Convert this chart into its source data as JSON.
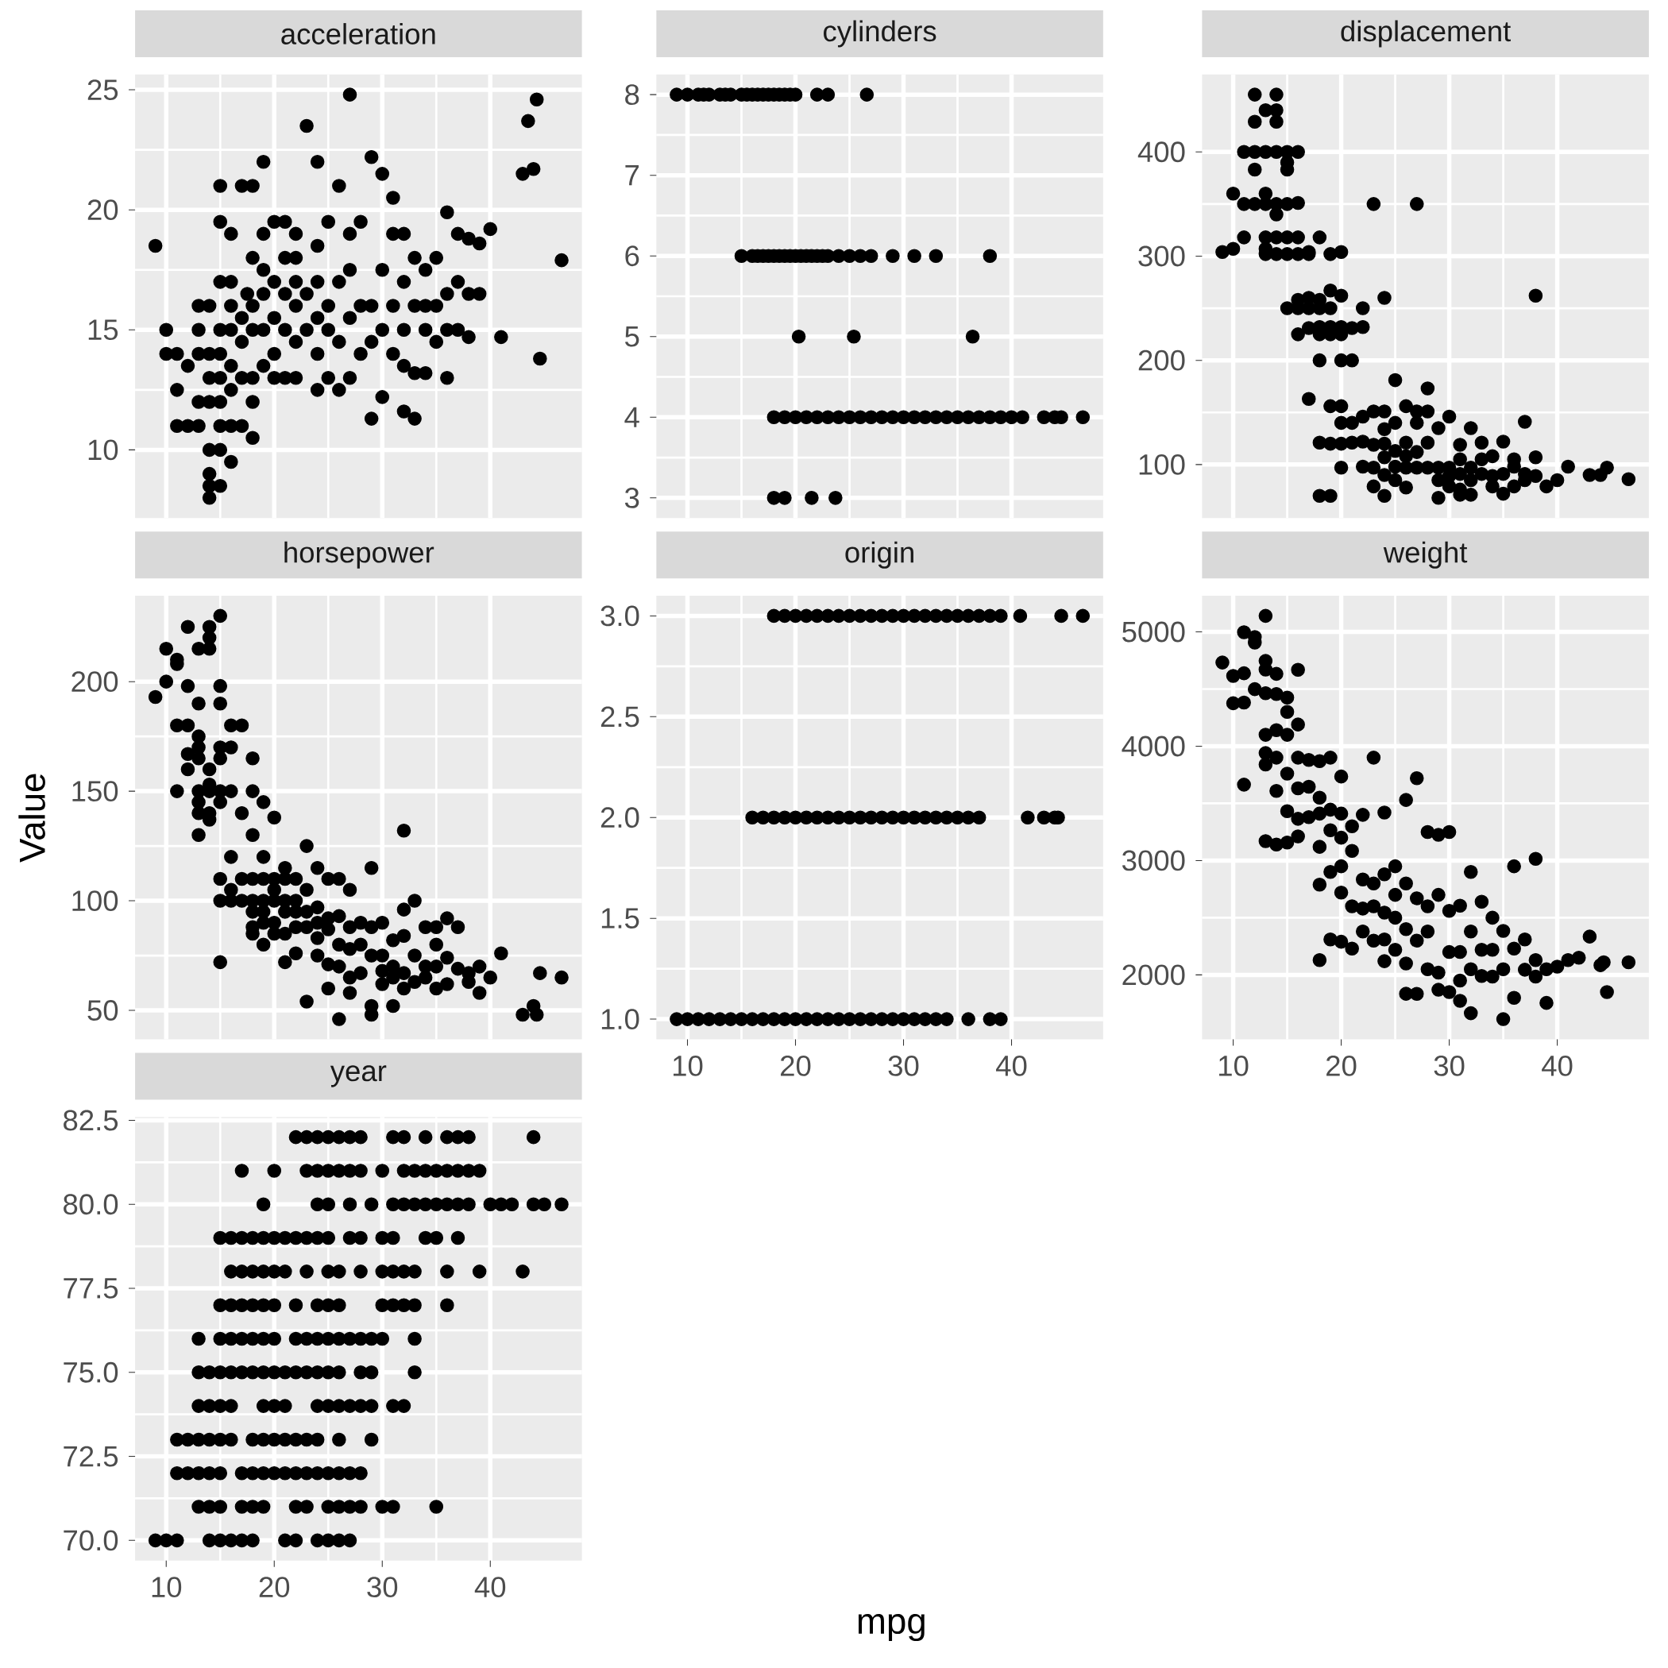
{
  "chart_data": [
    {
      "type": "scatter",
      "title": "acceleration",
      "color": "#000000",
      "marker": "circle",
      "grid": true,
      "tick_labels": "y",
      "xlim": [
        7.12,
        48.48
      ],
      "ylim": [
        7.16,
        25.64
      ],
      "xticks": [
        10,
        20,
        30,
        40
      ],
      "yticks": [
        10,
        15,
        20,
        25
      ],
      "x": [
        9,
        10,
        10,
        11,
        11,
        11,
        12,
        12,
        13,
        13,
        13,
        13,
        13,
        14,
        14,
        14,
        14,
        14,
        14,
        14,
        14,
        15,
        15,
        15,
        15,
        15,
        15,
        15,
        15,
        15,
        15,
        16,
        16,
        16,
        16,
        16,
        16,
        16,
        16,
        17,
        17,
        17,
        17,
        17,
        17.5,
        18,
        18,
        18,
        18,
        18,
        18,
        18,
        19,
        19,
        19,
        19,
        19,
        19,
        20,
        20,
        20,
        20,
        20,
        21,
        21,
        21,
        21,
        21,
        22,
        22,
        22,
        22,
        22,
        22,
        23,
        23,
        23,
        24,
        24,
        24,
        24,
        24,
        24,
        25,
        25,
        25,
        25,
        26,
        26,
        26,
        26,
        27,
        27,
        27,
        27,
        27,
        28,
        28,
        28,
        29,
        29,
        29,
        29,
        30,
        30,
        30,
        30,
        31,
        31,
        31,
        31,
        32,
        32,
        32,
        32,
        32,
        33,
        33,
        33,
        33,
        34,
        34,
        34,
        34,
        35,
        35,
        35,
        36,
        36,
        36,
        36,
        37,
        37,
        37,
        38,
        38,
        38,
        39,
        39,
        40,
        41,
        43,
        43.5,
        44,
        44.3,
        44.6,
        46.6
      ],
      "values": [
        18.5,
        15,
        14,
        14,
        11,
        12.5,
        11,
        13.5,
        12,
        11,
        14,
        15,
        16,
        8,
        9,
        8.5,
        10,
        12,
        13,
        14,
        16,
        8.5,
        10,
        11,
        12,
        13,
        14,
        15,
        17,
        19.5,
        21,
        9.5,
        11,
        12.5,
        13.5,
        15,
        16,
        17,
        19,
        11,
        13,
        14.5,
        15.5,
        21,
        16.5,
        10.5,
        12,
        13,
        15,
        16,
        18,
        21,
        13.5,
        15,
        16.5,
        17.5,
        19,
        22,
        13,
        14,
        15.5,
        17,
        19.5,
        13,
        15,
        16.5,
        18,
        19.5,
        13,
        14.5,
        16,
        17,
        18,
        19,
        15,
        16.5,
        23.5,
        12.5,
        14,
        15.5,
        17,
        18.5,
        22,
        13,
        15,
        16,
        19.5,
        12.5,
        14.5,
        17,
        21,
        13,
        15.5,
        17.5,
        19,
        24.8,
        14,
        16,
        19.5,
        11.3,
        14.5,
        16,
        22.2,
        12.2,
        15,
        17.5,
        21.5,
        14,
        16,
        19,
        20.5,
        13.5,
        11.6,
        15,
        17,
        19,
        11.3,
        13.2,
        16,
        18,
        13.2,
        15,
        16,
        17.5,
        14.5,
        16,
        18,
        13,
        15,
        16.5,
        19.9,
        15,
        17,
        19,
        14.7,
        16.5,
        18.8,
        16.5,
        18.6,
        19.2,
        14.7,
        21.5,
        23.7,
        21.7,
        24.6,
        13.8,
        17.9
      ]
    },
    {
      "type": "scatter",
      "title": "cylinders",
      "color": "#000000",
      "marker": "circle",
      "grid": true,
      "tick_labels": "y",
      "xlim": [
        7.12,
        48.48
      ],
      "ylim": [
        2.75,
        8.25
      ],
      "xticks": [
        10,
        20,
        30,
        40
      ],
      "yticks": [
        3,
        4,
        5,
        6,
        7,
        8
      ],
      "x": [
        9,
        10,
        11,
        11.5,
        12,
        13,
        13.5,
        14,
        15,
        15.5,
        16,
        16.5,
        17,
        17.5,
        18,
        18.5,
        19,
        19.5,
        20,
        22,
        23,
        26.6,
        15,
        16,
        16.5,
        17,
        17.5,
        18,
        18.5,
        19,
        19.5,
        20,
        20.5,
        21,
        21.5,
        22,
        22.5,
        23,
        24,
        25,
        26,
        27,
        29,
        31,
        33,
        38,
        20.3,
        25.4,
        36.4,
        18,
        19,
        20,
        21,
        22,
        23,
        24,
        25,
        26,
        27,
        28,
        29,
        30,
        31,
        32,
        33,
        34,
        35,
        36,
        37,
        38,
        39,
        40,
        41,
        43,
        44,
        44.6,
        46.6,
        18,
        19,
        21.5,
        23.7
      ],
      "values": [
        8,
        8,
        8,
        8,
        8,
        8,
        8,
        8,
        8,
        8,
        8,
        8,
        8,
        8,
        8,
        8,
        8,
        8,
        8,
        8,
        8,
        8,
        6,
        6,
        6,
        6,
        6,
        6,
        6,
        6,
        6,
        6,
        6,
        6,
        6,
        6,
        6,
        6,
        6,
        6,
        6,
        6,
        6,
        6,
        6,
        6,
        5,
        5,
        5,
        4,
        4,
        4,
        4,
        4,
        4,
        4,
        4,
        4,
        4,
        4,
        4,
        4,
        4,
        4,
        4,
        4,
        4,
        4,
        4,
        4,
        4,
        4,
        4,
        4,
        4,
        4,
        4,
        3,
        3,
        3,
        3
      ]
    },
    {
      "type": "scatter",
      "title": "displacement",
      "color": "#000000",
      "marker": "circle",
      "grid": true,
      "tick_labels": "y",
      "xlim": [
        7.12,
        48.48
      ],
      "ylim": [
        48.65,
        474.35
      ],
      "xticks": [
        10,
        20,
        30,
        40
      ],
      "yticks": [
        100,
        200,
        300,
        400
      ],
      "x": [
        9,
        10,
        10,
        11,
        11,
        11,
        12,
        12,
        12,
        12,
        12,
        13,
        13,
        13,
        13,
        13,
        13,
        13,
        14,
        14,
        14,
        14,
        14,
        14,
        14,
        14,
        15,
        15,
        15,
        15,
        15,
        15,
        15,
        16,
        16,
        16,
        16,
        16,
        16,
        16,
        17,
        17,
        17,
        17,
        17,
        17,
        18,
        18,
        18,
        18,
        18,
        18,
        18,
        18,
        19,
        19,
        19,
        19,
        19,
        19,
        19,
        19,
        20,
        20,
        20,
        20,
        20,
        20,
        20,
        20,
        20,
        21,
        21,
        21,
        21,
        22,
        22,
        22,
        22,
        22,
        23,
        23,
        23,
        23,
        23,
        24,
        24,
        24,
        24,
        24,
        24,
        24,
        25,
        25,
        25,
        25,
        25,
        26,
        26,
        26,
        26,
        26,
        27,
        27,
        27,
        27,
        27,
        28,
        28,
        28,
        28,
        29,
        29,
        29,
        29,
        30,
        30,
        30,
        30,
        31,
        31,
        31,
        31,
        31,
        32,
        32,
        32,
        32,
        33,
        33,
        33,
        34,
        34,
        34,
        35,
        35,
        35,
        36,
        36,
        36,
        37,
        37,
        37,
        38,
        38,
        38,
        39,
        40,
        41,
        43,
        44,
        44.6,
        46.6
      ],
      "values": [
        304,
        307,
        360,
        318,
        350,
        400,
        350,
        383,
        400,
        429,
        455,
        302,
        307,
        318,
        350,
        360,
        400,
        440,
        302,
        318,
        340,
        350,
        400,
        429,
        455,
        440,
        250,
        302,
        318,
        350,
        383,
        390,
        400,
        250,
        258,
        302,
        318,
        351,
        400,
        225,
        163,
        231,
        250,
        260,
        302,
        304,
        121,
        70,
        200,
        225,
        232,
        250,
        258,
        318,
        70,
        120,
        156,
        225,
        232,
        250,
        267,
        302,
        97,
        120,
        140,
        156,
        200,
        225,
        232,
        262,
        304,
        140,
        200,
        231,
        121,
        98,
        122,
        146,
        232,
        250,
        79,
        97,
        119,
        151,
        350,
        70,
        90,
        107,
        120,
        134,
        151,
        260,
        85,
        98,
        113,
        140,
        181,
        78,
        97,
        108,
        121,
        156,
        97,
        112,
        140,
        151,
        350,
        97,
        121,
        151,
        173,
        68,
        85,
        97,
        135,
        79,
        89,
        97,
        146,
        71,
        76,
        91,
        105,
        119,
        71,
        85,
        97,
        135,
        91,
        105,
        121,
        79,
        89,
        108,
        72,
        91,
        122,
        79,
        98,
        105,
        85,
        91,
        141,
        89,
        107,
        262,
        79,
        85,
        98,
        90,
        90,
        97,
        86
      ]
    },
    {
      "type": "scatter",
      "title": "horsepower",
      "ylabel": "Value",
      "color": "#000000",
      "marker": "circle",
      "grid": true,
      "tick_labels": "y",
      "xlim": [
        7.12,
        48.48
      ],
      "ylim": [
        36.8,
        239.2
      ],
      "xticks": [
        10,
        20,
        30,
        40
      ],
      "yticks": [
        50,
        100,
        150,
        200
      ],
      "x": [
        9,
        10,
        10,
        11,
        11,
        11,
        11,
        12,
        12,
        12,
        12,
        12,
        13,
        13,
        13,
        13,
        13,
        13,
        13,
        13,
        13,
        14,
        14,
        14,
        14,
        14,
        14,
        14,
        14,
        15,
        15,
        15,
        15,
        15,
        15,
        15,
        15,
        15,
        15,
        16,
        16,
        16,
        16,
        16,
        16,
        17,
        17,
        17,
        17,
        18,
        18,
        18,
        18,
        18,
        18,
        18,
        18,
        19,
        19,
        19,
        19,
        19,
        19,
        19,
        20,
        20,
        20,
        20,
        20,
        20,
        21,
        21,
        21,
        21,
        21,
        21,
        22,
        22,
        22,
        22,
        22,
        23,
        23,
        23,
        23,
        23,
        24,
        24,
        24,
        24,
        24,
        25,
        25,
        25,
        25,
        25,
        26,
        26,
        26,
        26,
        26,
        27,
        27,
        27,
        27,
        27,
        28,
        28,
        28,
        29,
        29,
        29,
        29,
        29,
        30,
        30,
        30,
        30,
        31,
        31,
        31,
        31,
        32,
        32,
        32,
        32,
        32,
        33,
        33,
        33,
        34,
        34,
        34,
        35,
        35,
        35,
        35,
        36,
        36,
        36,
        37,
        37,
        38,
        38,
        39,
        39,
        40,
        41,
        43,
        44,
        44.3,
        44.6,
        46.6
      ],
      "values": [
        193,
        215,
        200,
        210,
        208,
        180,
        150,
        180,
        198,
        225,
        167,
        160,
        215,
        190,
        175,
        170,
        165,
        150,
        145,
        140,
        130,
        225,
        220,
        215,
        160,
        153,
        150,
        140,
        137,
        230,
        198,
        190,
        170,
        165,
        150,
        145,
        110,
        100,
        72,
        180,
        170,
        150,
        120,
        105,
        100,
        180,
        140,
        110,
        100,
        165,
        150,
        130,
        110,
        100,
        95,
        88,
        85,
        145,
        120,
        110,
        100,
        95,
        90,
        80,
        138,
        110,
        105,
        100,
        90,
        85,
        115,
        110,
        100,
        95,
        85,
        72,
        110,
        100,
        95,
        88,
        76,
        125,
        105,
        95,
        88,
        54,
        115,
        97,
        90,
        83,
        75,
        110,
        92,
        87,
        71,
        60,
        110,
        93,
        80,
        70,
        46,
        105,
        88,
        78,
        65,
        58,
        90,
        80,
        67,
        115,
        88,
        75,
        52,
        48,
        90,
        75,
        68,
        62,
        82,
        70,
        65,
        52,
        132,
        96,
        84,
        67,
        60,
        100,
        75,
        63,
        88,
        70,
        65,
        88,
        80,
        70,
        60,
        92,
        74,
        62,
        88,
        69,
        67,
        63,
        70,
        58,
        65,
        76,
        48,
        52,
        48,
        67,
        65
      ]
    },
    {
      "type": "scatter",
      "title": "origin",
      "xlabel": "mpg",
      "color": "#000000",
      "marker": "circle",
      "grid": true,
      "xlim": [
        7.12,
        48.48
      ],
      "ylim": [
        0.9,
        3.1
      ],
      "xticks": [
        10,
        20,
        30,
        40
      ],
      "yticks": [
        {
          "value": 1,
          "label": "1.0"
        },
        {
          "value": 1.5,
          "label": "1.5"
        },
        {
          "value": 2,
          "label": "2.0"
        },
        {
          "value": 2.5,
          "label": "2.5"
        },
        {
          "value": 3,
          "label": "3.0"
        }
      ],
      "x": [
        18,
        19,
        20,
        21,
        22,
        23,
        24,
        25,
        26,
        27,
        28,
        29,
        30,
        31,
        32,
        33,
        34,
        35,
        36,
        37,
        38,
        39,
        40.8,
        44.6,
        46.6,
        16,
        17,
        18,
        19,
        20,
        21,
        22,
        23,
        24,
        25,
        26,
        27,
        28,
        29,
        30,
        31,
        32,
        33,
        34,
        35,
        36,
        37,
        41.5,
        43,
        44,
        44.3,
        9,
        10,
        11,
        12,
        13,
        14,
        15,
        16,
        17,
        18,
        19,
        20,
        21,
        22,
        23,
        24,
        25,
        26,
        27,
        28,
        29,
        30,
        31,
        32,
        33,
        34,
        36,
        38,
        39
      ],
      "values": [
        3,
        3,
        3,
        3,
        3,
        3,
        3,
        3,
        3,
        3,
        3,
        3,
        3,
        3,
        3,
        3,
        3,
        3,
        3,
        3,
        3,
        3,
        3,
        3,
        3,
        2,
        2,
        2,
        2,
        2,
        2,
        2,
        2,
        2,
        2,
        2,
        2,
        2,
        2,
        2,
        2,
        2,
        2,
        2,
        2,
        2,
        2,
        2,
        2,
        2,
        2,
        1,
        1,
        1,
        1,
        1,
        1,
        1,
        1,
        1,
        1,
        1,
        1,
        1,
        1,
        1,
        1,
        1,
        1,
        1,
        1,
        1,
        1,
        1,
        1,
        1,
        1,
        1,
        1,
        1
      ]
    },
    {
      "type": "scatter",
      "title": "weight",
      "color": "#000000",
      "marker": "circle",
      "grid": true,
      "xlim": [
        7.12,
        48.48
      ],
      "ylim": [
        1436.65,
        5316.35
      ],
      "xticks": [
        10,
        20,
        30,
        40
      ],
      "yticks": [
        2000,
        3000,
        4000,
        5000
      ],
      "x": [
        9,
        10,
        10,
        11,
        11,
        11,
        11,
        12,
        12,
        12,
        13,
        13,
        13,
        13,
        13,
        13,
        13,
        13,
        14,
        14,
        14,
        14,
        14,
        14,
        15,
        15,
        15,
        15,
        15,
        15,
        16,
        16,
        16,
        16,
        16,
        16,
        17,
        17,
        17,
        18,
        18,
        18,
        18,
        18,
        18,
        19,
        19,
        19,
        19,
        19,
        20,
        20,
        20,
        20,
        20,
        20,
        21,
        21,
        21,
        21,
        22,
        22,
        22,
        22,
        23,
        23,
        23,
        23,
        24,
        24,
        24,
        24,
        24,
        25,
        25,
        25,
        25,
        26,
        26,
        26,
        26,
        26,
        27,
        27,
        27,
        27,
        28,
        28,
        28,
        28,
        29,
        29,
        29,
        29,
        30,
        30,
        30,
        30,
        31,
        31,
        31,
        31,
        32,
        32,
        32,
        32,
        33,
        33,
        33,
        34,
        34,
        34,
        35,
        35,
        35,
        36,
        36,
        36,
        37,
        37,
        38,
        38,
        38,
        39,
        39,
        40,
        41,
        42,
        43,
        44,
        44.3,
        44.6,
        46.6
      ],
      "values": [
        4732,
        4615,
        4376,
        4997,
        4638,
        4382,
        3664,
        4955,
        4906,
        4499,
        5140,
        4746,
        4670,
        4464,
        4100,
        3940,
        3840,
        3170,
        4633,
        4457,
        4140,
        3900,
        3609,
        3140,
        4425,
        4300,
        4100,
        3760,
        3432,
        3158,
        4668,
        4190,
        3900,
        3632,
        3365,
        3211,
        3880,
        3645,
        3380,
        3870,
        3550,
        3410,
        3120,
        2789,
        2130,
        3900,
        3445,
        3265,
        2900,
        2310,
        3735,
        3410,
        3200,
        2950,
        2720,
        2290,
        3300,
        3085,
        2600,
        2230,
        3400,
        2835,
        2580,
        2380,
        3900,
        2800,
        2600,
        2300,
        3420,
        2880,
        2545,
        2310,
        2120,
        2950,
        2700,
        2500,
        2220,
        3530,
        2800,
        2400,
        2100,
        1835,
        3720,
        2670,
        2300,
        1834,
        3250,
        2600,
        2380,
        2050,
        3225,
        2700,
        2020,
        1870,
        3250,
        2560,
        2200,
        1850,
        2605,
        2200,
        1950,
        1773,
        2900,
        2380,
        2050,
        1665,
        2640,
        2220,
        1990,
        2500,
        2220,
        1985,
        2385,
        2050,
        1613,
        2950,
        2230,
        1800,
        2310,
        2045,
        3015,
        2130,
        1985,
        2050,
        1755,
        2072,
        2130,
        2150,
        2335,
        2085,
        2110,
        1850,
        2110
      ]
    },
    {
      "type": "scatter",
      "title": "year",
      "color": "#000000",
      "marker": "circle",
      "grid": true,
      "xlim": [
        7.12,
        48.48
      ],
      "ylim": [
        69.4,
        82.6
      ],
      "xticks": [
        10,
        20,
        30,
        40
      ],
      "yticks": [
        {
          "value": 70,
          "label": "70.0"
        },
        {
          "value": 72.5,
          "label": "72.5"
        },
        {
          "value": 75,
          "label": "75.0"
        },
        {
          "value": 77.5,
          "label": "77.5"
        },
        {
          "value": 80,
          "label": "80.0"
        },
        {
          "value": 82.5,
          "label": "82.5"
        }
      ],
      "x": [
        9,
        10,
        11,
        14,
        15,
        16,
        17,
        18,
        21,
        22,
        24,
        25,
        26,
        27,
        13,
        14,
        15,
        17,
        18,
        19,
        22,
        23,
        25,
        26,
        27,
        28,
        30,
        31,
        35,
        11,
        12,
        13,
        14,
        15,
        17,
        18,
        19,
        20,
        21,
        22,
        23,
        24,
        25,
        26,
        27,
        28,
        11,
        12,
        13,
        14,
        15,
        16,
        18,
        19,
        20,
        21,
        22,
        23,
        24,
        26,
        29,
        13,
        14,
        15,
        16,
        19,
        20,
        21,
        24,
        25,
        26,
        27,
        28,
        29,
        31,
        32,
        13,
        14,
        15,
        16,
        17,
        18,
        19,
        20,
        21,
        22,
        23,
        24,
        25,
        26,
        28,
        29,
        33,
        13,
        15,
        16,
        17,
        18,
        19,
        20,
        22,
        23,
        24,
        25,
        26,
        27,
        28,
        29,
        30,
        33,
        15,
        16,
        17,
        18,
        19,
        20,
        22,
        24,
        25,
        26,
        30,
        31,
        32,
        33,
        36,
        16,
        17,
        18,
        19,
        20,
        21,
        23,
        25,
        26,
        28,
        30,
        31,
        32,
        33,
        36,
        39,
        43,
        15,
        16,
        17,
        18,
        19,
        20,
        21,
        22,
        23,
        24,
        25,
        27,
        28,
        30,
        31,
        34,
        35,
        37,
        19,
        24,
        25,
        27,
        29,
        31,
        32,
        33,
        34,
        35,
        36,
        37,
        38,
        40,
        41,
        42,
        44,
        45,
        46.6,
        17,
        20,
        23,
        24,
        25,
        26,
        27,
        28,
        30,
        32,
        33,
        34,
        35,
        36,
        37,
        38,
        39,
        22,
        23,
        24,
        25,
        26,
        27,
        28,
        31,
        32,
        34,
        36,
        37,
        38,
        44
      ],
      "values": [
        70,
        70,
        70,
        70,
        70,
        70,
        70,
        70,
        70,
        70,
        70,
        70,
        70,
        70,
        71,
        71,
        71,
        71,
        71,
        71,
        71,
        71,
        71,
        71,
        71,
        71,
        71,
        71,
        71,
        72,
        72,
        72,
        72,
        72,
        72,
        72,
        72,
        72,
        72,
        72,
        72,
        72,
        72,
        72,
        72,
        72,
        73,
        73,
        73,
        73,
        73,
        73,
        73,
        73,
        73,
        73,
        73,
        73,
        73,
        73,
        73,
        74,
        74,
        74,
        74,
        74,
        74,
        74,
        74,
        74,
        74,
        74,
        74,
        74,
        74,
        74,
        75,
        75,
        75,
        75,
        75,
        75,
        75,
        75,
        75,
        75,
        75,
        75,
        75,
        75,
        75,
        75,
        75,
        76,
        76,
        76,
        76,
        76,
        76,
        76,
        76,
        76,
        76,
        76,
        76,
        76,
        76,
        76,
        76,
        76,
        77,
        77,
        77,
        77,
        77,
        77,
        77,
        77,
        77,
        77,
        77,
        77,
        77,
        77,
        77,
        78,
        78,
        78,
        78,
        78,
        78,
        78,
        78,
        78,
        78,
        78,
        78,
        78,
        78,
        78,
        78,
        78,
        79,
        79,
        79,
        79,
        79,
        79,
        79,
        79,
        79,
        79,
        79,
        79,
        79,
        79,
        79,
        79,
        79,
        79,
        80,
        80,
        80,
        80,
        80,
        80,
        80,
        80,
        80,
        80,
        80,
        80,
        80,
        80,
        80,
        80,
        80,
        80,
        80,
        81,
        81,
        81,
        81,
        81,
        81,
        81,
        81,
        81,
        81,
        81,
        81,
        81,
        81,
        81,
        81,
        81,
        82,
        82,
        82,
        82,
        82,
        82,
        82,
        82,
        82,
        82,
        82,
        82,
        82,
        82
      ]
    }
  ]
}
